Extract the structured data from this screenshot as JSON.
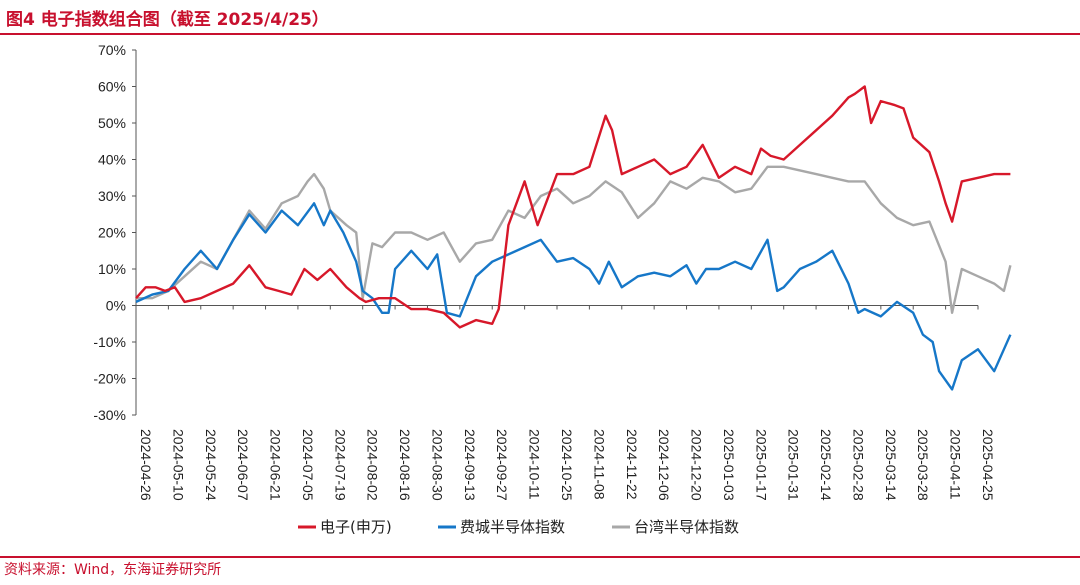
{
  "header": {
    "title": "图4  电子指数组合图（截至 2025/4/25）"
  },
  "footer": {
    "source": "资料来源：Wind，东海证券研究所"
  },
  "chart_data": {
    "type": "line",
    "title": "电子指数组合图（截至 2025/4/25）",
    "xlabel": "",
    "ylabel": "",
    "ylim": [
      -30,
      70
    ],
    "y_ticks": [
      -30,
      -20,
      -10,
      0,
      10,
      20,
      30,
      40,
      50,
      60,
      70
    ],
    "y_tick_labels": [
      "-30%",
      "-20%",
      "-10%",
      "0%",
      "10%",
      "20%",
      "30%",
      "40%",
      "50%",
      "60%",
      "70%"
    ],
    "x_tick_labels": [
      "2024-04-26",
      "2024-05-10",
      "2024-05-24",
      "2024-06-07",
      "2024-06-21",
      "2024-07-05",
      "2024-07-19",
      "2024-08-02",
      "2024-08-16",
      "2024-08-30",
      "2024-09-13",
      "2024-09-27",
      "2024-10-11",
      "2024-10-25",
      "2024-11-08",
      "2024-11-22",
      "2024-12-06",
      "2024-12-20",
      "2025-01-03",
      "2025-01-17",
      "2025-01-31",
      "2025-02-14",
      "2025-02-28",
      "2025-03-14",
      "2025-03-28",
      "2025-04-11",
      "2025-04-25"
    ],
    "legend_position": "bottom-center",
    "series": [
      {
        "name": "电子(申万)",
        "color": "#d7182a",
        "points": [
          [
            0,
            2
          ],
          [
            0.3,
            5
          ],
          [
            0.6,
            5
          ],
          [
            0.9,
            4
          ],
          [
            1.2,
            5
          ],
          [
            1.5,
            1
          ],
          [
            2,
            2
          ],
          [
            2.5,
            4
          ],
          [
            3,
            6
          ],
          [
            3.5,
            11
          ],
          [
            4,
            5
          ],
          [
            4.4,
            4
          ],
          [
            4.8,
            3
          ],
          [
            5.2,
            10
          ],
          [
            5.6,
            7
          ],
          [
            6,
            10
          ],
          [
            6.5,
            5
          ],
          [
            6.9,
            2
          ],
          [
            7.1,
            1
          ],
          [
            7.5,
            2
          ],
          [
            8,
            2
          ],
          [
            8.5,
            -1
          ],
          [
            9,
            -1
          ],
          [
            9.5,
            -2
          ],
          [
            10,
            -6
          ],
          [
            10.5,
            -4
          ],
          [
            11,
            -5
          ],
          [
            11.2,
            -1
          ],
          [
            11.5,
            22
          ],
          [
            12,
            34
          ],
          [
            12.4,
            22
          ],
          [
            13,
            36
          ],
          [
            13.5,
            36
          ],
          [
            14,
            38
          ],
          [
            14.5,
            52
          ],
          [
            14.7,
            48
          ],
          [
            15,
            36
          ],
          [
            15.5,
            38
          ],
          [
            16,
            40
          ],
          [
            16.5,
            36
          ],
          [
            17,
            38
          ],
          [
            17.5,
            44
          ],
          [
            18,
            35
          ],
          [
            18.5,
            38
          ],
          [
            19,
            36
          ],
          [
            19.3,
            43
          ],
          [
            19.6,
            41
          ],
          [
            20,
            40
          ],
          [
            20.5,
            44
          ],
          [
            21,
            48
          ],
          [
            21.5,
            52
          ],
          [
            21.8,
            55
          ],
          [
            22,
            57
          ],
          [
            22.2,
            58
          ],
          [
            22.5,
            60
          ],
          [
            22.7,
            50
          ],
          [
            23,
            56
          ],
          [
            23.4,
            55
          ],
          [
            23.7,
            54
          ],
          [
            24,
            46
          ],
          [
            24.5,
            42
          ],
          [
            24.8,
            34
          ],
          [
            25,
            28
          ],
          [
            25.2,
            23
          ],
          [
            25.5,
            34
          ],
          [
            26,
            35
          ],
          [
            26.5,
            36
          ],
          [
            26.8,
            36
          ],
          [
            27,
            36
          ]
        ]
      },
      {
        "name": "费城半导体指数",
        "color": "#1677c8",
        "points": [
          [
            0,
            1
          ],
          [
            0.5,
            3
          ],
          [
            1,
            4
          ],
          [
            1.5,
            10
          ],
          [
            2,
            15
          ],
          [
            2.5,
            10
          ],
          [
            3,
            18
          ],
          [
            3.5,
            25
          ],
          [
            4,
            20
          ],
          [
            4.5,
            26
          ],
          [
            5,
            22
          ],
          [
            5.5,
            28
          ],
          [
            5.8,
            22
          ],
          [
            6,
            26
          ],
          [
            6.4,
            20
          ],
          [
            6.8,
            12
          ],
          [
            7,
            4
          ],
          [
            7.3,
            2
          ],
          [
            7.6,
            -2
          ],
          [
            7.8,
            -2
          ],
          [
            8,
            10
          ],
          [
            8.5,
            15
          ],
          [
            9,
            10
          ],
          [
            9.3,
            14
          ],
          [
            9.6,
            -2
          ],
          [
            10,
            -3
          ],
          [
            10.5,
            8
          ],
          [
            11,
            12
          ],
          [
            11.5,
            14
          ],
          [
            12,
            16
          ],
          [
            12.5,
            18
          ],
          [
            13,
            12
          ],
          [
            13.5,
            13
          ],
          [
            14,
            10
          ],
          [
            14.3,
            6
          ],
          [
            14.6,
            12
          ],
          [
            15,
            5
          ],
          [
            15.5,
            8
          ],
          [
            16,
            9
          ],
          [
            16.5,
            8
          ],
          [
            17,
            11
          ],
          [
            17.3,
            6
          ],
          [
            17.6,
            10
          ],
          [
            18,
            10
          ],
          [
            18.5,
            12
          ],
          [
            19,
            10
          ],
          [
            19.5,
            18
          ],
          [
            19.8,
            4
          ],
          [
            20,
            5
          ],
          [
            20.5,
            10
          ],
          [
            21,
            12
          ],
          [
            21.5,
            15
          ],
          [
            22,
            6
          ],
          [
            22.3,
            -2
          ],
          [
            22.5,
            -1
          ],
          [
            23,
            -3
          ],
          [
            23.5,
            1
          ],
          [
            24,
            -2
          ],
          [
            24.3,
            -8
          ],
          [
            24.6,
            -10
          ],
          [
            24.8,
            -18
          ],
          [
            25.2,
            -23
          ],
          [
            25.5,
            -15
          ],
          [
            26,
            -12
          ],
          [
            26.5,
            -18
          ],
          [
            27,
            -8
          ]
        ]
      },
      {
        "name": "台湾半导体指数",
        "color": "#a8a8a8",
        "points": [
          [
            0,
            2
          ],
          [
            0.5,
            2
          ],
          [
            1,
            4
          ],
          [
            1.5,
            8
          ],
          [
            2,
            12
          ],
          [
            2.5,
            10
          ],
          [
            3,
            18
          ],
          [
            3.5,
            26
          ],
          [
            4,
            21
          ],
          [
            4.5,
            28
          ],
          [
            5,
            30
          ],
          [
            5.3,
            34
          ],
          [
            5.5,
            36
          ],
          [
            5.8,
            32
          ],
          [
            6,
            26
          ],
          [
            6.5,
            22
          ],
          [
            6.8,
            20
          ],
          [
            7,
            2
          ],
          [
            7.3,
            17
          ],
          [
            7.6,
            16
          ],
          [
            8,
            20
          ],
          [
            8.5,
            20
          ],
          [
            9,
            18
          ],
          [
            9.5,
            20
          ],
          [
            10,
            12
          ],
          [
            10.5,
            17
          ],
          [
            11,
            18
          ],
          [
            11.5,
            26
          ],
          [
            12,
            24
          ],
          [
            12.5,
            30
          ],
          [
            13,
            32
          ],
          [
            13.5,
            28
          ],
          [
            14,
            30
          ],
          [
            14.5,
            34
          ],
          [
            15,
            31
          ],
          [
            15.5,
            24
          ],
          [
            16,
            28
          ],
          [
            16.5,
            34
          ],
          [
            17,
            32
          ],
          [
            17.5,
            35
          ],
          [
            18,
            34
          ],
          [
            18.5,
            31
          ],
          [
            19,
            32
          ],
          [
            19.5,
            38
          ],
          [
            20,
            38
          ],
          [
            20.5,
            37
          ],
          [
            21,
            36
          ],
          [
            21.5,
            35
          ],
          [
            22,
            34
          ],
          [
            22.5,
            34
          ],
          [
            23,
            28
          ],
          [
            23.5,
            24
          ],
          [
            24,
            22
          ],
          [
            24.5,
            23
          ],
          [
            25,
            12
          ],
          [
            25.2,
            -2
          ],
          [
            25.5,
            10
          ],
          [
            26,
            8
          ],
          [
            26.5,
            6
          ],
          [
            26.8,
            4
          ],
          [
            27,
            11
          ]
        ]
      }
    ]
  }
}
